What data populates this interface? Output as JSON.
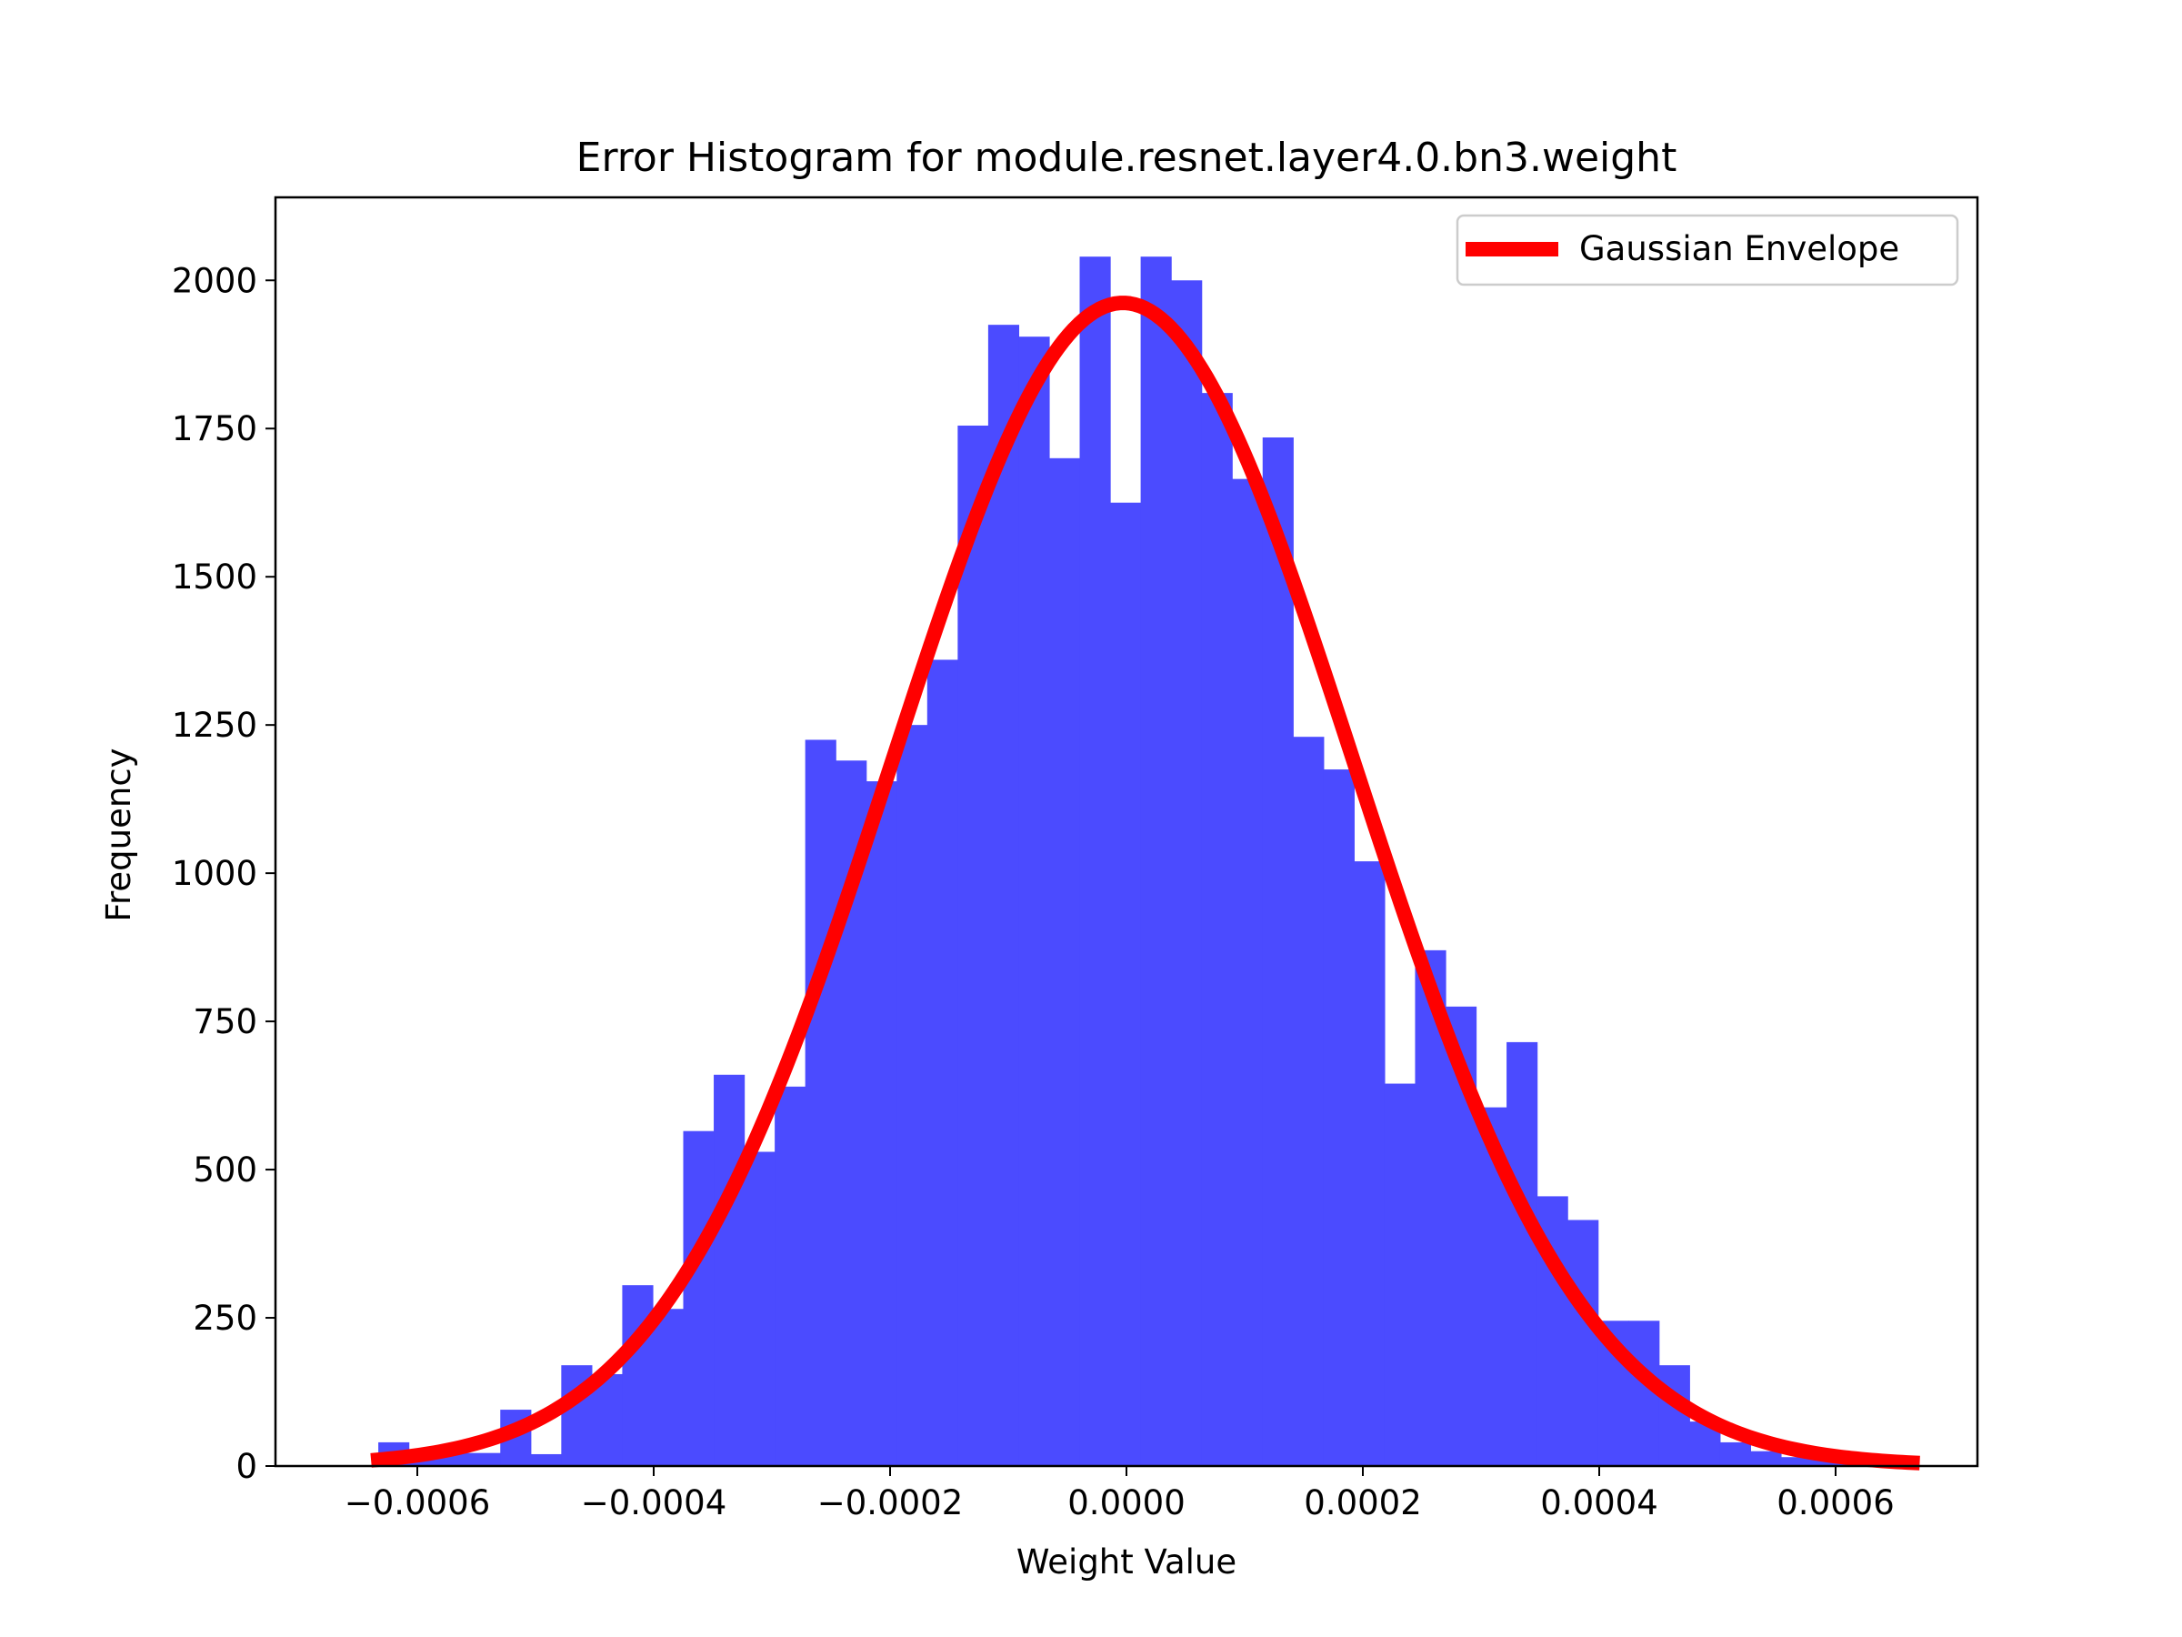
{
  "chart_data": {
    "type": "bar",
    "title": "Error Histogram for module.resnet.layer4.0.bn3.weight",
    "xlabel": "Weight Value",
    "ylabel": "Frequency",
    "xlim": [
      -0.00072,
      0.00072
    ],
    "ylim": [
      0,
      2140
    ],
    "grid": false,
    "x_ticks": [
      -0.0006,
      -0.0004,
      -0.0002,
      0.0,
      0.0002,
      0.0004,
      0.0006
    ],
    "x_tick_labels": [
      "−0.0006",
      "−0.0004",
      "−0.0002",
      "0.0000",
      "0.0002",
      "0.0004",
      "0.0006"
    ],
    "y_ticks": [
      0,
      250,
      500,
      750,
      1000,
      1250,
      1500,
      1750,
      2000
    ],
    "y_tick_labels": [
      "0",
      "250",
      "500",
      "750",
      "1000",
      "1250",
      "1500",
      "1750",
      "2000"
    ],
    "bin_start": -0.000633,
    "bin_width": 2.58e-05,
    "frequencies": [
      40,
      22,
      22,
      22,
      95,
      20,
      170,
      155,
      305,
      265,
      565,
      660,
      530,
      640,
      1225,
      1190,
      1155,
      1250,
      1360,
      1755,
      1925,
      1905,
      1700,
      2040,
      1625,
      2040,
      2000,
      1810,
      1665,
      1735,
      1230,
      1175,
      1020,
      645,
      870,
      775,
      605,
      715,
      455,
      415,
      245,
      245,
      170,
      75,
      40,
      25,
      15,
      10,
      5,
      2
    ],
    "bar_color": "#4b4bff",
    "series": [
      {
        "name": "Gaussian Envelope",
        "type": "line",
        "color": "#ff0000",
        "mean": -3e-06,
        "std": 0.000195,
        "peak": 1962,
        "x_range": [
          -0.000633,
          0.000665
        ]
      }
    ],
    "legend_position": "top-right"
  }
}
